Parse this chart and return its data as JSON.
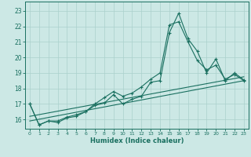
{
  "xlabel": "Humidex (Indice chaleur)",
  "bg_color": "#cce8e5",
  "grid_color": "#aad0cc",
  "line_color": "#1a7060",
  "xlim": [
    -0.5,
    23.5
  ],
  "ylim": [
    15.4,
    23.6
  ],
  "yticks": [
    16,
    17,
    18,
    19,
    20,
    21,
    22,
    23
  ],
  "xticks": [
    0,
    1,
    2,
    3,
    4,
    5,
    6,
    7,
    8,
    9,
    10,
    11,
    12,
    13,
    14,
    15,
    16,
    17,
    18,
    19,
    20,
    21,
    22,
    23
  ],
  "line1_x": [
    0,
    1,
    2,
    3,
    4,
    5,
    6,
    7,
    8,
    9,
    10,
    11,
    12,
    13,
    14,
    15,
    16,
    17,
    18,
    19,
    20,
    21,
    22,
    23
  ],
  "line1_y": [
    17.0,
    15.65,
    15.9,
    15.8,
    16.1,
    16.2,
    16.5,
    16.9,
    17.05,
    17.6,
    17.0,
    17.3,
    17.5,
    18.4,
    18.5,
    21.6,
    22.85,
    21.2,
    20.4,
    19.0,
    19.9,
    18.5,
    19.0,
    18.55
  ],
  "line2_x": [
    0,
    1,
    2,
    3,
    4,
    5,
    6,
    7,
    8,
    9,
    10,
    11,
    12,
    13,
    14,
    15,
    16,
    17,
    18,
    19,
    20,
    21,
    22,
    23
  ],
  "line2_y": [
    17.0,
    15.65,
    15.9,
    15.9,
    16.15,
    16.3,
    16.5,
    17.0,
    17.4,
    17.8,
    17.5,
    17.7,
    18.1,
    18.6,
    19.0,
    22.1,
    22.3,
    21.0,
    19.8,
    19.2,
    19.5,
    18.6,
    18.9,
    18.5
  ],
  "line3_x": [
    0,
    23
  ],
  "line3_y": [
    15.9,
    18.5
  ],
  "line4_x": [
    0,
    23
  ],
  "line4_y": [
    16.2,
    18.75
  ]
}
